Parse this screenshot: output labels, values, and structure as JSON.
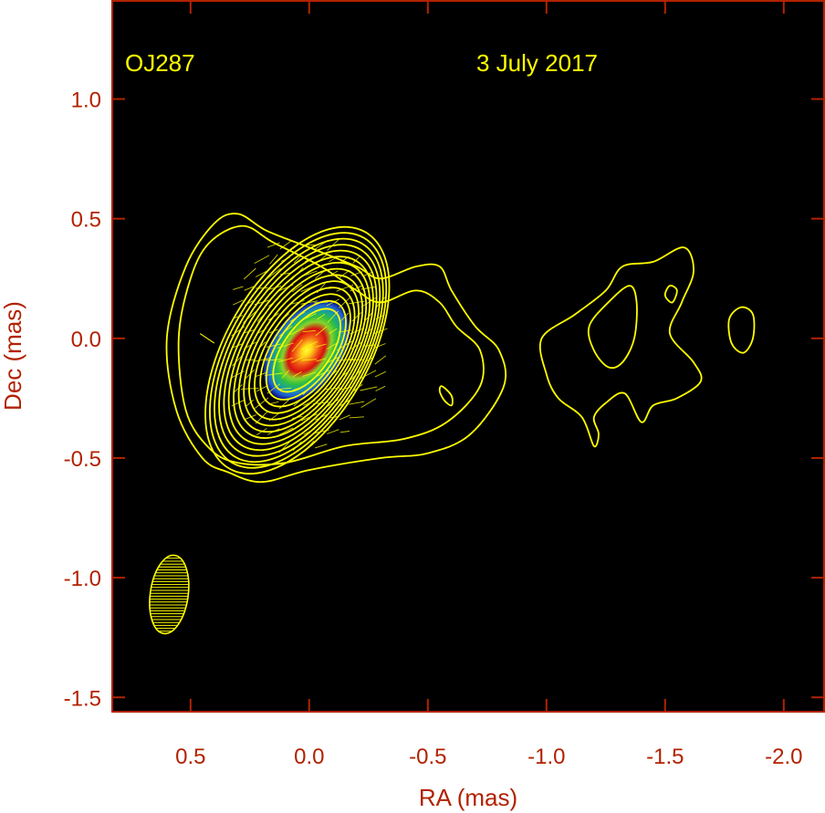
{
  "chart_data": {
    "type": "heatmap",
    "title": "",
    "annotations": {
      "source": "OJ287",
      "date": "3 July 2017"
    },
    "xlabel": "RA (mas)",
    "ylabel": "Dec (mas)",
    "xlim": [
      0.83,
      -2.17
    ],
    "ylim": [
      -1.56,
      1.41
    ],
    "x_direction": "decreasing",
    "xticks": [
      0.5,
      0.0,
      -0.5,
      -1.0,
      -1.5,
      -2.0
    ],
    "xtick_labels": [
      "0.5",
      "0.0",
      "-0.5",
      "-1.0",
      "-1.5",
      "-2.0"
    ],
    "yticks": [
      1.0,
      0.5,
      0.0,
      -0.5,
      -1.0,
      -1.5
    ],
    "ytick_labels": [
      "1.0",
      "0.5",
      "0.0",
      "-0.5",
      "-1.0",
      "-1.5"
    ],
    "grid": false,
    "colors": {
      "background": "#000000",
      "frame": "#b22200",
      "labels": "#b22200",
      "contours": "#ffff00",
      "annotations": "#ffff00",
      "colormap": [
        "#0a1a8c",
        "#1f5fd0",
        "#17a0a0",
        "#2fbf3f",
        "#8ad22a",
        "#e3c21a",
        "#e8551a",
        "#d81010",
        "#ffff30"
      ]
    },
    "core": {
      "ra": 0.01,
      "dec": -0.05,
      "peak": 1.0
    },
    "beam": {
      "ra": 0.59,
      "dec": -1.07,
      "major_mas": 0.33,
      "minor_mas": 0.16,
      "pa_deg": 8,
      "hatching": "horizontal"
    },
    "contour_levels": 14,
    "core_contour_envelopes": {
      "inner": {
        "ra": 0.01,
        "dec": -0.05,
        "semi_major_mas": 0.2,
        "semi_minor_mas": 0.1,
        "pa_deg": 35
      },
      "outer": {
        "ra": 0.05,
        "dec": -0.05,
        "semi_major_mas": 0.57,
        "semi_minor_mas": 0.3,
        "pa_deg": 30
      }
    },
    "jet_contours": [
      {
        "level": "lowest",
        "points": [
          [
            0.34,
            -0.56
          ],
          [
            0.2,
            -0.6
          ],
          [
            0.0,
            -0.55
          ],
          [
            -0.3,
            -0.5
          ],
          [
            -0.5,
            -0.48
          ],
          [
            -0.68,
            -0.4
          ],
          [
            -0.82,
            -0.2
          ],
          [
            -0.8,
            -0.05
          ],
          [
            -0.7,
            0.05
          ],
          [
            -0.6,
            0.2
          ],
          [
            -0.55,
            0.3
          ],
          [
            -0.45,
            0.3
          ],
          [
            -0.3,
            0.25
          ],
          [
            -0.2,
            0.3
          ],
          [
            0.0,
            0.38
          ],
          [
            0.18,
            0.45
          ],
          [
            0.3,
            0.52
          ],
          [
            0.4,
            0.48
          ],
          [
            0.52,
            0.3
          ],
          [
            0.6,
            0.0
          ],
          [
            0.56,
            -0.3
          ],
          [
            0.45,
            -0.5
          ]
        ]
      },
      {
        "level": "second",
        "points": [
          [
            0.3,
            -0.52
          ],
          [
            0.1,
            -0.52
          ],
          [
            -0.15,
            -0.45
          ],
          [
            -0.4,
            -0.42
          ],
          [
            -0.58,
            -0.35
          ],
          [
            -0.72,
            -0.2
          ],
          [
            -0.72,
            -0.05
          ],
          [
            -0.62,
            0.05
          ],
          [
            -0.55,
            0.15
          ],
          [
            -0.45,
            0.2
          ],
          [
            -0.3,
            0.15
          ],
          [
            -0.2,
            0.2
          ],
          [
            -0.05,
            0.3
          ],
          [
            0.15,
            0.4
          ],
          [
            0.28,
            0.47
          ],
          [
            0.42,
            0.4
          ],
          [
            0.5,
            0.25
          ],
          [
            0.55,
            0.0
          ],
          [
            0.52,
            -0.3
          ],
          [
            0.42,
            -0.46
          ]
        ]
      },
      {
        "level": "knot",
        "points": [
          [
            -0.56,
            -0.2
          ],
          [
            -0.6,
            -0.24
          ],
          [
            -0.6,
            -0.28
          ],
          [
            -0.57,
            -0.26
          ],
          [
            -0.55,
            -0.22
          ]
        ]
      }
    ],
    "outer_knot_contours": [
      {
        "level": "lowest",
        "points": [
          [
            -1.0,
            -0.15
          ],
          [
            -0.98,
            0.0
          ],
          [
            -1.12,
            0.1
          ],
          [
            -1.25,
            0.2
          ],
          [
            -1.32,
            0.3
          ],
          [
            -1.45,
            0.32
          ],
          [
            -1.58,
            0.38
          ],
          [
            -1.62,
            0.28
          ],
          [
            -1.57,
            0.15
          ],
          [
            -1.52,
            0.02
          ],
          [
            -1.62,
            -0.1
          ],
          [
            -1.65,
            -0.18
          ],
          [
            -1.55,
            -0.25
          ],
          [
            -1.45,
            -0.28
          ],
          [
            -1.4,
            -0.35
          ],
          [
            -1.33,
            -0.23
          ],
          [
            -1.25,
            -0.27
          ],
          [
            -1.2,
            -0.33
          ],
          [
            -1.22,
            -0.4
          ],
          [
            -1.2,
            -0.45
          ],
          [
            -1.15,
            -0.33
          ],
          [
            -1.05,
            -0.25
          ]
        ]
      },
      {
        "level": "second",
        "points": [
          [
            -1.2,
            -0.05
          ],
          [
            -1.18,
            0.05
          ],
          [
            -1.26,
            0.15
          ],
          [
            -1.35,
            0.22
          ],
          [
            -1.38,
            0.15
          ],
          [
            -1.37,
            0.0
          ],
          [
            -1.32,
            -0.1
          ],
          [
            -1.26,
            -0.12
          ]
        ]
      },
      {
        "level": "peak",
        "points": [
          [
            -1.5,
            0.18
          ],
          [
            -1.52,
            0.22
          ],
          [
            -1.55,
            0.2
          ],
          [
            -1.53,
            0.15
          ]
        ]
      },
      {
        "level": "isolated",
        "points": [
          [
            -1.78,
            -0.02
          ],
          [
            -1.77,
            0.08
          ],
          [
            -1.82,
            0.13
          ],
          [
            -1.87,
            0.1
          ],
          [
            -1.87,
            0.0
          ],
          [
            -1.83,
            -0.06
          ]
        ]
      }
    ],
    "polarization_vectors": {
      "color": "#ffff00",
      "region": {
        "ra_range": [
          0.3,
          -0.3
        ],
        "dec_range": [
          -0.45,
          0.4
        ]
      },
      "mean_pa_deg": 65
    }
  }
}
